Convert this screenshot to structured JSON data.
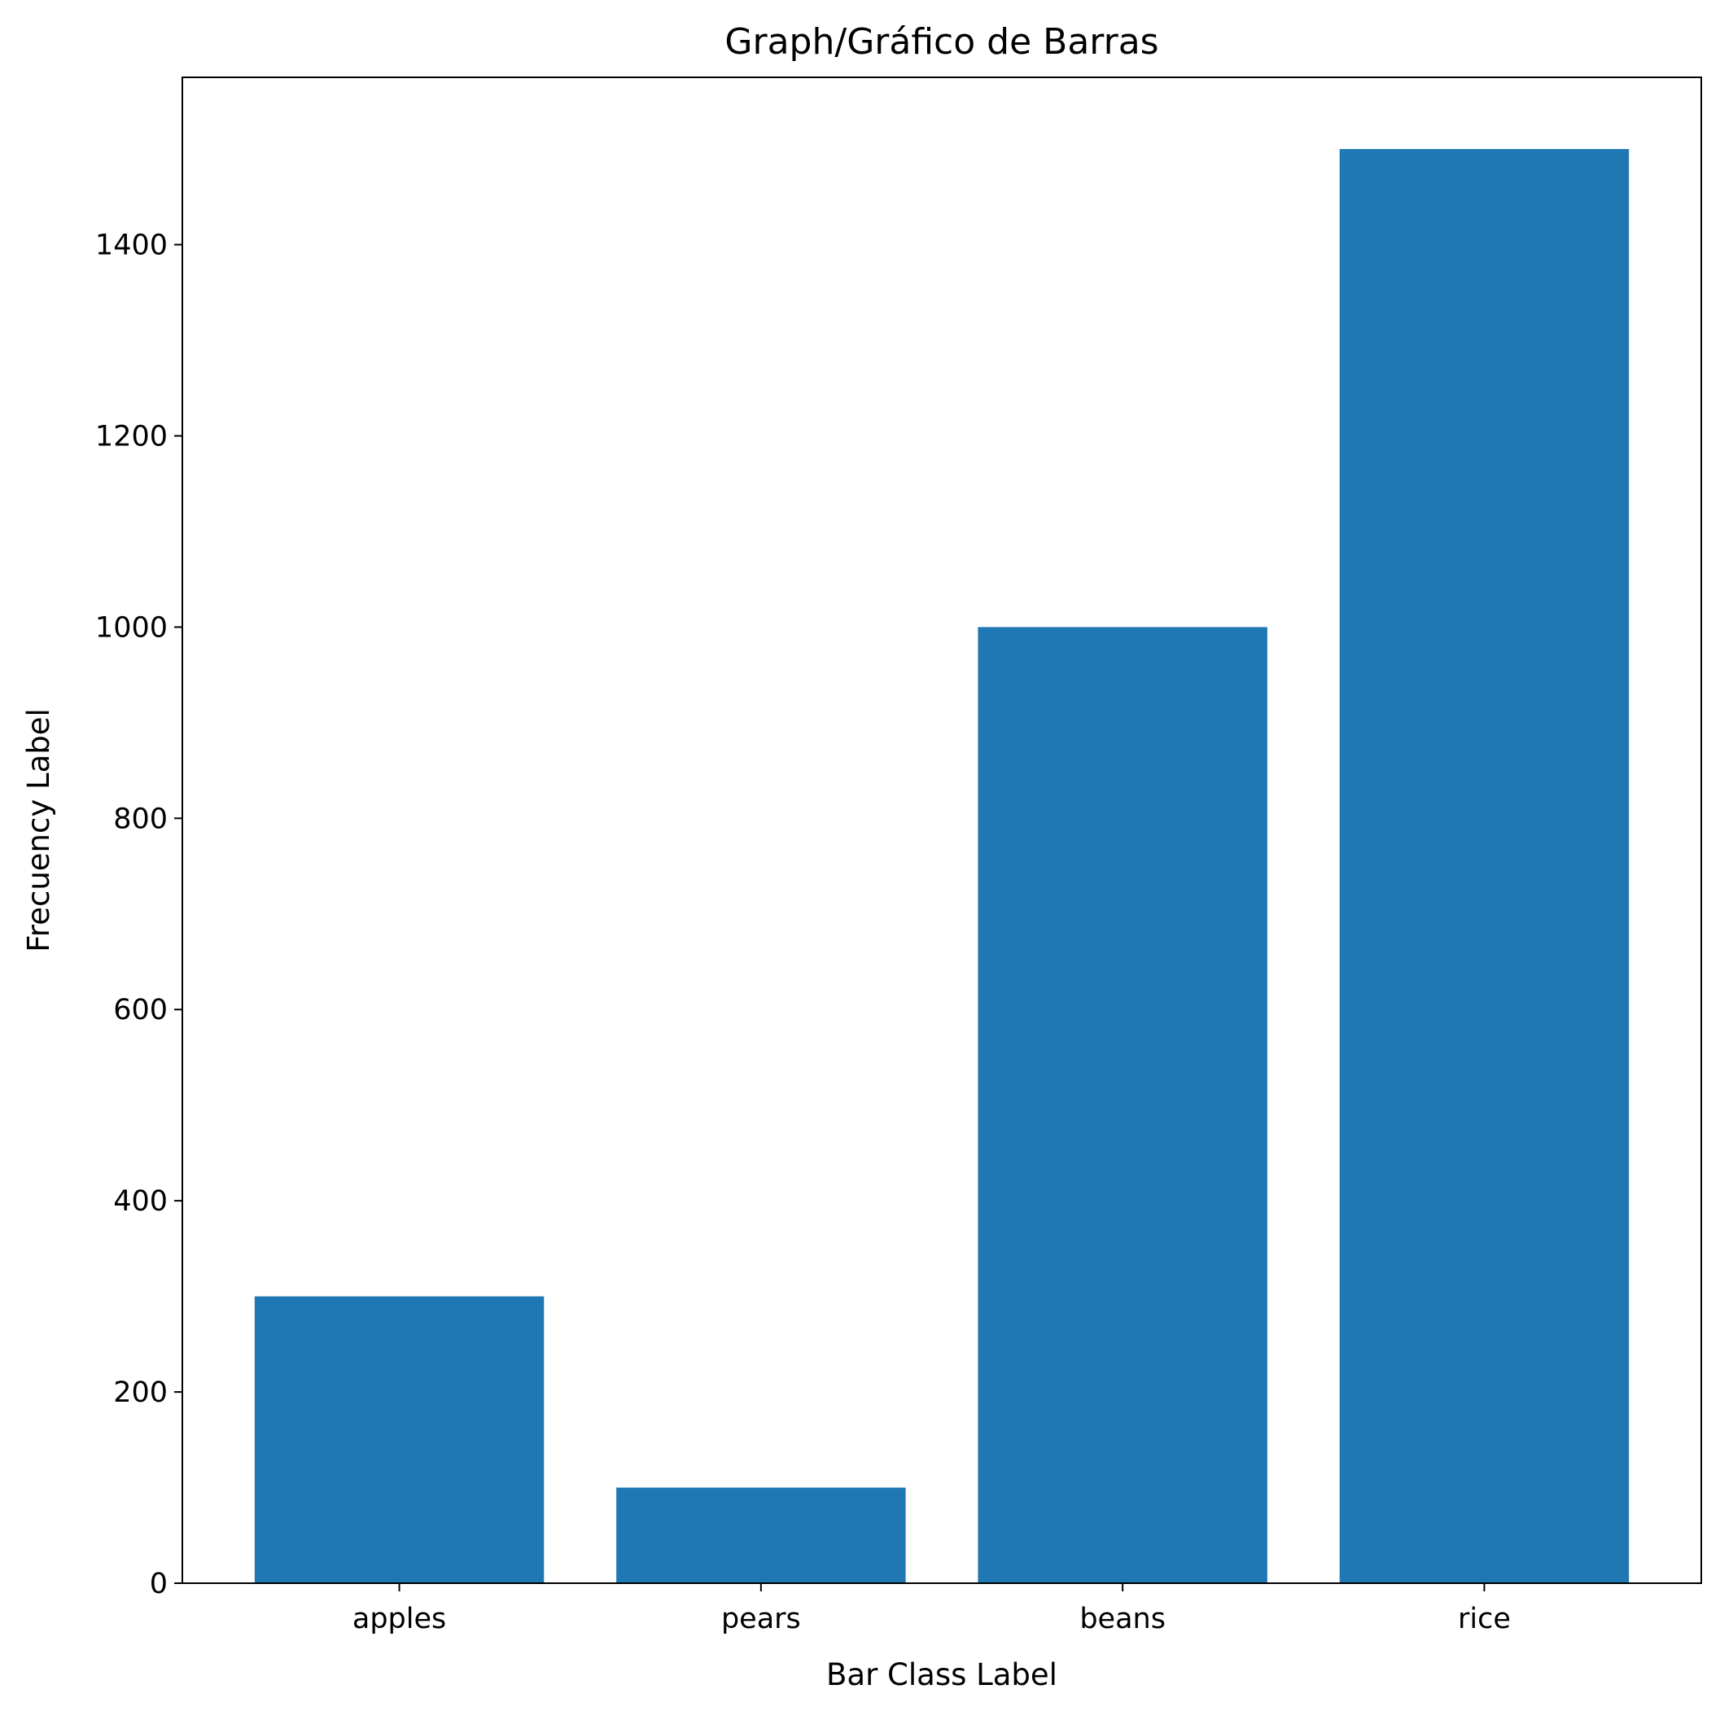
{
  "chart_data": {
    "type": "bar",
    "title": "Graph/Gráfico de Barras",
    "xlabel": "Bar Class Label",
    "ylabel": "Frecuency Label",
    "categories": [
      "apples",
      "pears",
      "beans",
      "rice"
    ],
    "values": [
      300,
      100,
      1000,
      1500
    ],
    "ylim": [
      0,
      1575
    ],
    "yticks": [
      0,
      200,
      400,
      600,
      800,
      1000,
      1200,
      1400
    ],
    "grid": false,
    "bar_color": "#1f77b4"
  }
}
